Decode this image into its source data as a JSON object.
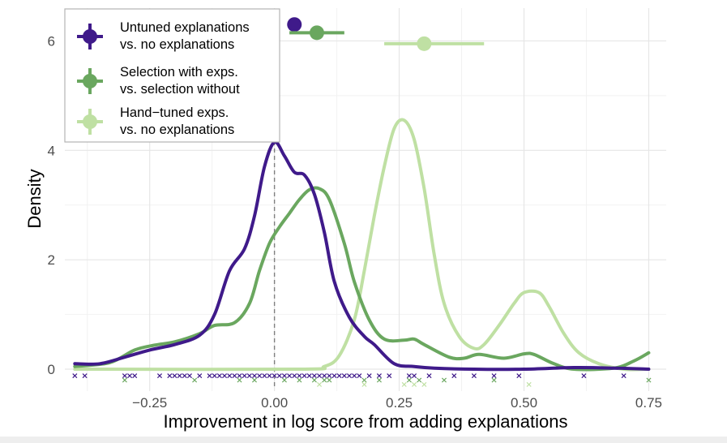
{
  "chart_data": {
    "type": "line",
    "xlabel": "Improvement in log score from adding explanations",
    "ylabel": "Density",
    "xlim": [
      -0.42,
      0.785
    ],
    "ylim": [
      -0.4,
      6.6
    ],
    "x_ticks": [
      -0.25,
      0.0,
      0.25,
      0.5,
      0.75
    ],
    "x_tick_labels": [
      "−0.25",
      "0.00",
      "0.25",
      "0.50",
      "0.75"
    ],
    "y_ticks": [
      0,
      2,
      4,
      6
    ],
    "y_tick_labels": [
      "0",
      "2",
      "4",
      "6"
    ],
    "grid": true,
    "reference_line_x": 0,
    "legend_position": "top-left",
    "series": [
      {
        "name": "Untuned explanations\nvs. no explanations",
        "color": "#3f1a8a",
        "density": [
          [
            -0.4,
            0.1
          ],
          [
            -0.35,
            0.1
          ],
          [
            -0.3,
            0.22
          ],
          [
            -0.25,
            0.35
          ],
          [
            -0.2,
            0.45
          ],
          [
            -0.15,
            0.62
          ],
          [
            -0.12,
            1.0
          ],
          [
            -0.09,
            1.8
          ],
          [
            -0.06,
            2.2
          ],
          [
            -0.04,
            2.8
          ],
          [
            -0.02,
            3.7
          ],
          [
            0.0,
            4.15
          ],
          [
            0.02,
            3.9
          ],
          [
            0.04,
            3.6
          ],
          [
            0.06,
            3.55
          ],
          [
            0.08,
            3.2
          ],
          [
            0.1,
            2.5
          ],
          [
            0.12,
            1.6
          ],
          [
            0.15,
            0.95
          ],
          [
            0.18,
            0.6
          ],
          [
            0.2,
            0.45
          ],
          [
            0.24,
            0.1
          ],
          [
            0.28,
            0.05
          ],
          [
            0.32,
            0.02
          ],
          [
            0.4,
            0.0
          ],
          [
            0.5,
            0.0
          ],
          [
            0.6,
            0.03
          ],
          [
            0.68,
            0.02
          ],
          [
            0.75,
            0.0
          ]
        ],
        "point_estimate": 0.04,
        "ci": [
          0.04,
          0.04
        ],
        "rug": [
          -0.4,
          -0.38,
          -0.3,
          -0.29,
          -0.28,
          -0.23,
          -0.21,
          -0.2,
          -0.19,
          -0.18,
          -0.17,
          -0.15,
          -0.13,
          -0.12,
          -0.11,
          -0.1,
          -0.09,
          -0.08,
          -0.07,
          -0.06,
          -0.05,
          -0.04,
          -0.03,
          -0.02,
          -0.01,
          0.0,
          0.01,
          0.02,
          0.03,
          0.04,
          0.05,
          0.06,
          0.07,
          0.08,
          0.09,
          0.1,
          0.11,
          0.12,
          0.13,
          0.14,
          0.15,
          0.16,
          0.17,
          0.19,
          0.21,
          0.23,
          0.27,
          0.28,
          0.31,
          0.36,
          0.4,
          0.44,
          0.49,
          0.62,
          0.7
        ]
      },
      {
        "name": "Selection with exps.\nvs. selection without",
        "color": "#6aa75f",
        "density": [
          [
            -0.4,
            0.05
          ],
          [
            -0.33,
            0.12
          ],
          [
            -0.28,
            0.35
          ],
          [
            -0.24,
            0.44
          ],
          [
            -0.2,
            0.5
          ],
          [
            -0.15,
            0.65
          ],
          [
            -0.12,
            0.8
          ],
          [
            -0.08,
            0.85
          ],
          [
            -0.05,
            1.2
          ],
          [
            -0.03,
            1.8
          ],
          [
            -0.01,
            2.3
          ],
          [
            0.01,
            2.6
          ],
          [
            0.03,
            2.85
          ],
          [
            0.05,
            3.1
          ],
          [
            0.07,
            3.28
          ],
          [
            0.09,
            3.3
          ],
          [
            0.11,
            3.1
          ],
          [
            0.14,
            2.3
          ],
          [
            0.16,
            1.6
          ],
          [
            0.19,
            0.9
          ],
          [
            0.22,
            0.55
          ],
          [
            0.26,
            0.53
          ],
          [
            0.28,
            0.55
          ],
          [
            0.3,
            0.45
          ],
          [
            0.35,
            0.22
          ],
          [
            0.38,
            0.2
          ],
          [
            0.41,
            0.27
          ],
          [
            0.46,
            0.2
          ],
          [
            0.5,
            0.28
          ],
          [
            0.52,
            0.27
          ],
          [
            0.56,
            0.1
          ],
          [
            0.6,
            0.0
          ],
          [
            0.68,
            0.02
          ],
          [
            0.72,
            0.15
          ],
          [
            0.75,
            0.3
          ]
        ],
        "point_estimate": 0.085,
        "ci": [
          0.03,
          0.14
        ],
        "rug": [
          -0.3,
          -0.16,
          -0.07,
          -0.04,
          0.02,
          0.05,
          0.08,
          0.1,
          0.11,
          0.18,
          0.21,
          0.27,
          0.29,
          0.34,
          0.44,
          0.75
        ]
      },
      {
        "name": "Hand−tuned exps.\nvs. no explanations",
        "color": "#bfe0a3",
        "density": [
          [
            -0.4,
            0.0
          ],
          [
            0.05,
            0.0
          ],
          [
            0.1,
            0.05
          ],
          [
            0.13,
            0.25
          ],
          [
            0.16,
            0.9
          ],
          [
            0.18,
            1.8
          ],
          [
            0.2,
            2.8
          ],
          [
            0.22,
            3.7
          ],
          [
            0.24,
            4.4
          ],
          [
            0.26,
            4.55
          ],
          [
            0.28,
            4.2
          ],
          [
            0.3,
            3.3
          ],
          [
            0.32,
            2.1
          ],
          [
            0.34,
            1.2
          ],
          [
            0.37,
            0.6
          ],
          [
            0.4,
            0.38
          ],
          [
            0.42,
            0.45
          ],
          [
            0.45,
            0.8
          ],
          [
            0.48,
            1.2
          ],
          [
            0.5,
            1.4
          ],
          [
            0.53,
            1.4
          ],
          [
            0.55,
            1.15
          ],
          [
            0.58,
            0.65
          ],
          [
            0.61,
            0.3
          ],
          [
            0.65,
            0.1
          ],
          [
            0.7,
            0.0
          ],
          [
            0.75,
            0.0
          ]
        ],
        "point_estimate": 0.3,
        "ci": [
          0.22,
          0.42
        ],
        "rug": [
          0.09,
          0.18,
          0.26,
          0.28,
          0.3,
          0.51
        ]
      }
    ]
  }
}
